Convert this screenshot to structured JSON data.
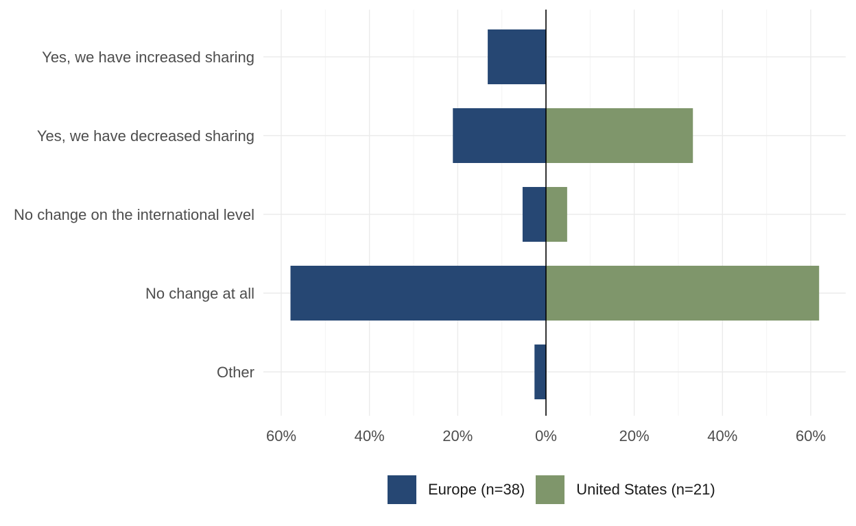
{
  "chart_data": {
    "type": "bar",
    "orientation": "horizontal-diverging",
    "categories": [
      "Yes, we have increased sharing",
      "Yes, we have decreased sharing",
      "No change on the international level",
      "No change at all",
      "Other"
    ],
    "series": [
      {
        "name": "Europe (n=38)",
        "side": "left",
        "color": "#264773",
        "values": [
          13.2,
          21.1,
          5.3,
          57.9,
          2.6
        ]
      },
      {
        "name": "United States (n=21)",
        "side": "right",
        "color": "#7f966b",
        "values": [
          0,
          33.3,
          4.8,
          61.9,
          0
        ]
      }
    ],
    "xlim": [
      -60,
      60
    ],
    "x_tick_values": [
      -60,
      -40,
      -20,
      0,
      20,
      40,
      60
    ],
    "x_tick_labels": [
      "60%",
      "40%",
      "20%",
      "0%",
      "20%",
      "40%",
      "60%"
    ],
    "grid": true,
    "legend_position": "bottom",
    "title": "",
    "xlabel": "",
    "ylabel": ""
  }
}
